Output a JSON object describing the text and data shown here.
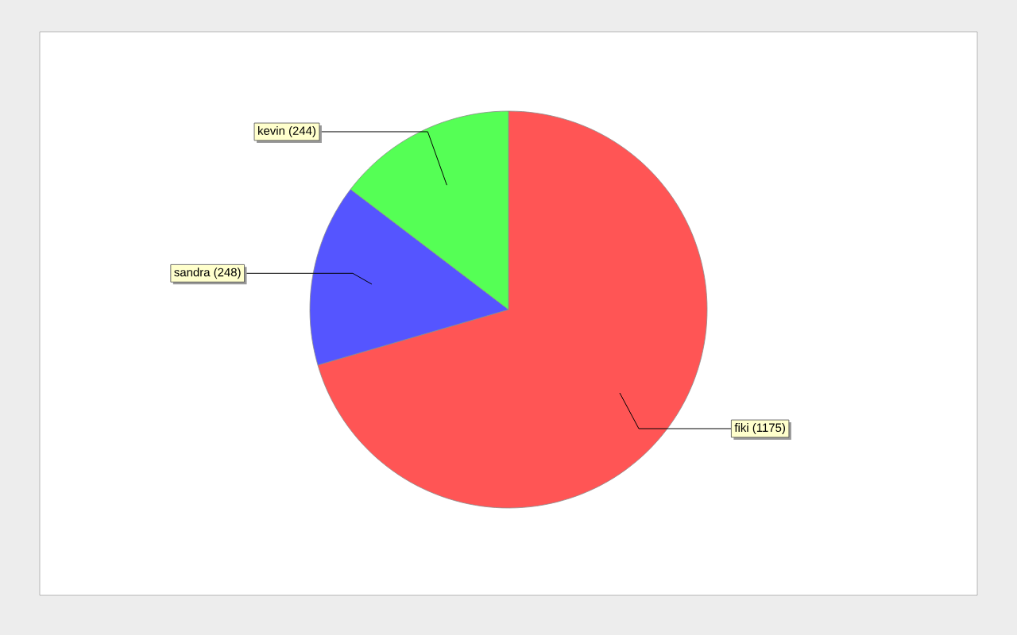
{
  "chart_data": {
    "type": "pie",
    "categories": [
      "fiki (1175)",
      "sandra (248)",
      "kevin (244)"
    ],
    "values": [
      1175,
      248,
      244
    ],
    "colors": [
      "#ff5555",
      "#5555ff",
      "#55ff55"
    ]
  }
}
